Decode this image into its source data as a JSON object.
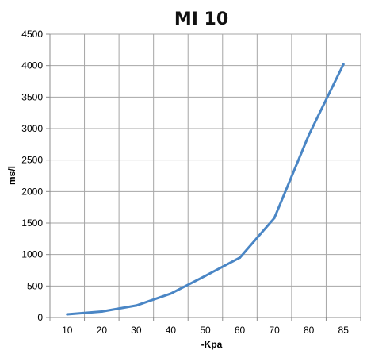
{
  "chart_data": {
    "type": "line",
    "title": "MI 10",
    "xlabel": "-Kpa",
    "ylabel": "ms/l",
    "categories": [
      "10",
      "20",
      "30",
      "40",
      "50",
      "60",
      "70",
      "80",
      "85"
    ],
    "series": [
      {
        "values": [
          50,
          95,
          190,
          380,
          660,
          950,
          1580,
          2900,
          4020
        ]
      }
    ],
    "ylim": [
      0,
      4500
    ],
    "yticks": [
      "0",
      "500",
      "1000",
      "1500",
      "2000",
      "2500",
      "3000",
      "3500",
      "4000",
      "4500"
    ],
    "grid": true,
    "legend": "none",
    "colors": {
      "line": "#4a86c5",
      "grid": "#a6a6a6",
      "axis": "#8c8c8c"
    }
  }
}
